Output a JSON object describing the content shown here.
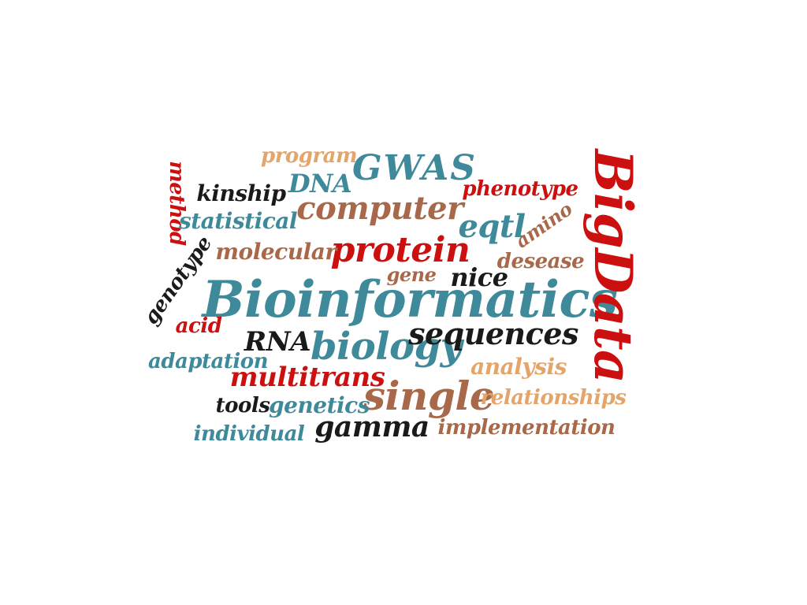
{
  "colors": {
    "teal": "#3e8a9a",
    "red": "#cc1010",
    "brown": "#a8694a",
    "tan": "#e3a56a",
    "black": "#1a1a1a"
  },
  "words": [
    {
      "text": "Bioinformatics",
      "color": "teal"
    },
    {
      "text": "BigData",
      "color": "red"
    },
    {
      "text": "protein",
      "color": "red"
    },
    {
      "text": "computer",
      "color": "brown"
    },
    {
      "text": "GWAS",
      "color": "teal"
    },
    {
      "text": "DNA",
      "color": "teal"
    },
    {
      "text": "program",
      "color": "tan"
    },
    {
      "text": "kinship",
      "color": "black"
    },
    {
      "text": "method",
      "color": "red"
    },
    {
      "text": "statistical",
      "color": "teal"
    },
    {
      "text": "phenotype",
      "color": "red"
    },
    {
      "text": "eqtl",
      "color": "teal"
    },
    {
      "text": "amino",
      "color": "brown"
    },
    {
      "text": "molecular",
      "color": "brown"
    },
    {
      "text": "desease",
      "color": "brown"
    },
    {
      "text": "genotype",
      "color": "black"
    },
    {
      "text": "gene",
      "color": "brown"
    },
    {
      "text": "nice",
      "color": "black"
    },
    {
      "text": "acid",
      "color": "red"
    },
    {
      "text": "RNA",
      "color": "black"
    },
    {
      "text": "biology",
      "color": "teal"
    },
    {
      "text": "sequences",
      "color": "black"
    },
    {
      "text": "adaptation",
      "color": "teal"
    },
    {
      "text": "multitrans",
      "color": "red"
    },
    {
      "text": "analysis",
      "color": "tan"
    },
    {
      "text": "single",
      "color": "brown"
    },
    {
      "text": "relationships",
      "color": "tan"
    },
    {
      "text": "tools",
      "color": "black"
    },
    {
      "text": "genetics",
      "color": "teal"
    },
    {
      "text": "gamma",
      "color": "black"
    },
    {
      "text": "implementation",
      "color": "brown"
    },
    {
      "text": "individual",
      "color": "teal"
    }
  ]
}
